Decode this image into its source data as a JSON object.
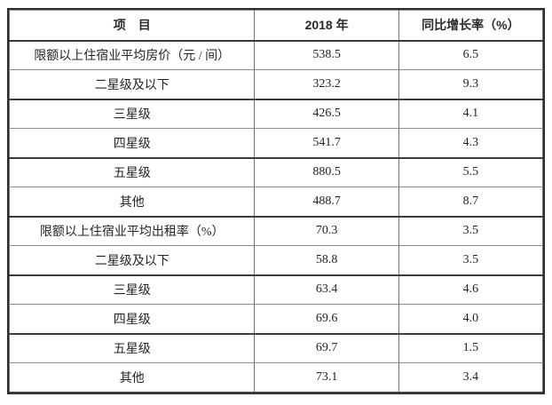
{
  "table": {
    "headers": {
      "item": "项　目",
      "year_2018": "2018 年",
      "yoy_growth": "同比增长率（%）"
    },
    "rows": [
      {
        "item": "限额以上住宿业平均房价（元 / 间）",
        "year_2018": "538.5",
        "yoy_growth": "6.5"
      },
      {
        "item": "二星级及以下",
        "year_2018": "323.2",
        "yoy_growth": "9.3"
      },
      {
        "item": "三星级",
        "year_2018": "426.5",
        "yoy_growth": "4.1"
      },
      {
        "item": "四星级",
        "year_2018": "541.7",
        "yoy_growth": "4.3"
      },
      {
        "item": "五星级",
        "year_2018": "880.5",
        "yoy_growth": "5.5"
      },
      {
        "item": "其他",
        "year_2018": "488.7",
        "yoy_growth": "8.7"
      },
      {
        "item": "限额以上住宿业平均出租率（%）",
        "year_2018": "70.3",
        "yoy_growth": "3.5"
      },
      {
        "item": "二星级及以下",
        "year_2018": "58.8",
        "yoy_growth": "3.5"
      },
      {
        "item": "三星级",
        "year_2018": "63.4",
        "yoy_growth": "4.6"
      },
      {
        "item": "四星级",
        "year_2018": "69.6",
        "yoy_growth": "4.0"
      },
      {
        "item": "五星级",
        "year_2018": "69.7",
        "yoy_growth": "1.5"
      },
      {
        "item": "其他",
        "year_2018": "73.1",
        "yoy_growth": "3.4"
      }
    ]
  },
  "colors": {
    "background": "#ffffff",
    "text": "#242424",
    "outer_border": "#2e2e2e",
    "inner_rule_light": "#8c8c8c",
    "inner_rule_dark": "#3d3d3d"
  }
}
